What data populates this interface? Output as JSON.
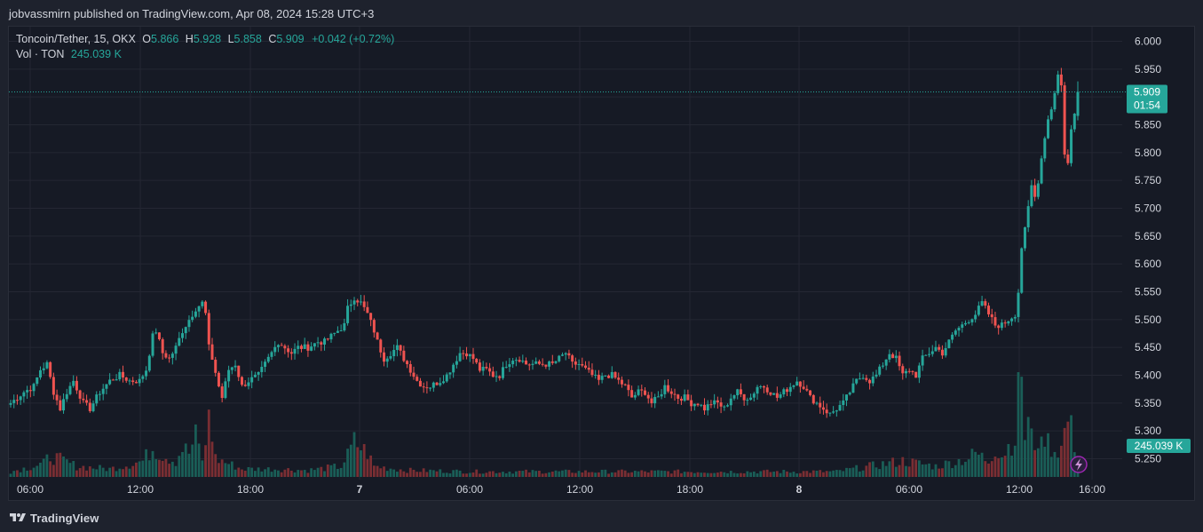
{
  "header": {
    "published_line": "jobvassmirn published on TradingView.com, Apr 08, 2024 15:28 UTC+3"
  },
  "legend": {
    "symbol": "Toncoin/Tether, 15, OKX",
    "o_label": "O",
    "o_value": "5.866",
    "h_label": "H",
    "h_value": "5.928",
    "l_label": "L",
    "l_value": "5.858",
    "c_label": "C",
    "c_value": "5.909",
    "change": "+0.042 (+0.72%)",
    "vol_label": "Vol · TON",
    "vol_value": "245.039 K"
  },
  "footer": {
    "brand": "TradingView"
  },
  "colors": {
    "background": "#161a25",
    "grid": "#242733",
    "up": "#26a69a",
    "down": "#ef5350",
    "vol_up": "#1a5e57",
    "vol_down": "#7a2e33",
    "text": "#d1d4dc",
    "price_tag": "#26a69a"
  },
  "chart_data": {
    "type": "candlestick",
    "title": "Toncoin/Tether, 15, OKX",
    "ylim": [
      5.22,
      6.02
    ],
    "y_ticks": [
      "6.000",
      "5.950",
      "5.900",
      "5.850",
      "5.800",
      "5.750",
      "5.700",
      "5.650",
      "5.600",
      "5.550",
      "5.500",
      "5.450",
      "5.400",
      "5.350",
      "5.300",
      "5.250"
    ],
    "x_ticks": [
      "06:00",
      "12:00",
      "18:00",
      "7",
      "06:00",
      "12:00",
      "18:00",
      "8",
      "06:00",
      "12:00",
      "16:00"
    ],
    "bold_x_ticks": [
      "7",
      "8"
    ],
    "last_price": "5.909",
    "countdown": "01:54",
    "last_volume": "245.039 K",
    "anchors": [
      [
        0,
        5.35
      ],
      [
        4,
        5.37
      ],
      [
        7,
        5.38
      ],
      [
        9,
        5.41
      ],
      [
        11,
        5.42
      ],
      [
        13,
        5.37
      ],
      [
        15,
        5.34
      ],
      [
        17,
        5.37
      ],
      [
        19,
        5.39
      ],
      [
        22,
        5.35
      ],
      [
        24,
        5.34
      ],
      [
        27,
        5.37
      ],
      [
        30,
        5.39
      ],
      [
        33,
        5.4
      ],
      [
        36,
        5.39
      ],
      [
        39,
        5.39
      ],
      [
        41,
        5.41
      ],
      [
        43,
        5.47
      ],
      [
        44,
        5.48
      ],
      [
        46,
        5.44
      ],
      [
        48,
        5.43
      ],
      [
        50,
        5.45
      ],
      [
        52,
        5.48
      ],
      [
        54,
        5.5
      ],
      [
        56,
        5.52
      ],
      [
        58,
        5.53
      ],
      [
        59,
        5.51
      ],
      [
        60,
        5.45
      ],
      [
        61,
        5.43
      ],
      [
        63,
        5.38
      ],
      [
        64,
        5.36
      ],
      [
        66,
        5.41
      ],
      [
        68,
        5.42
      ],
      [
        70,
        5.38
      ],
      [
        72,
        5.39
      ],
      [
        75,
        5.4
      ],
      [
        77,
        5.42
      ],
      [
        79,
        5.44
      ],
      [
        81,
        5.46
      ],
      [
        83,
        5.45
      ],
      [
        85,
        5.44
      ],
      [
        87,
        5.45
      ],
      [
        90,
        5.45
      ],
      [
        93,
        5.46
      ],
      [
        95,
        5.46
      ],
      [
        97,
        5.47
      ],
      [
        99,
        5.48
      ],
      [
        101,
        5.49
      ],
      [
        102,
        5.52
      ],
      [
        104,
        5.54
      ],
      [
        106,
        5.53
      ],
      [
        108,
        5.51
      ],
      [
        110,
        5.48
      ],
      [
        111,
        5.46
      ],
      [
        113,
        5.43
      ],
      [
        115,
        5.44
      ],
      [
        117,
        5.45
      ],
      [
        119,
        5.43
      ],
      [
        121,
        5.41
      ],
      [
        123,
        5.39
      ],
      [
        125,
        5.38
      ],
      [
        127,
        5.38
      ],
      [
        130,
        5.39
      ],
      [
        132,
        5.4
      ],
      [
        134,
        5.42
      ],
      [
        136,
        5.44
      ],
      [
        138,
        5.44
      ],
      [
        140,
        5.43
      ],
      [
        142,
        5.41
      ],
      [
        144,
        5.41
      ],
      [
        146,
        5.4
      ],
      [
        148,
        5.4
      ],
      [
        150,
        5.42
      ],
      [
        152,
        5.43
      ],
      [
        154,
        5.43
      ],
      [
        156,
        5.42
      ],
      [
        158,
        5.42
      ],
      [
        160,
        5.42
      ],
      [
        162,
        5.42
      ],
      [
        164,
        5.42
      ],
      [
        166,
        5.43
      ],
      [
        168,
        5.44
      ],
      [
        170,
        5.42
      ],
      [
        172,
        5.42
      ],
      [
        174,
        5.41
      ],
      [
        176,
        5.4
      ],
      [
        178,
        5.39
      ],
      [
        180,
        5.4
      ],
      [
        182,
        5.4
      ],
      [
        184,
        5.39
      ],
      [
        186,
        5.38
      ],
      [
        188,
        5.36
      ],
      [
        190,
        5.37
      ],
      [
        192,
        5.37
      ],
      [
        194,
        5.35
      ],
      [
        196,
        5.36
      ],
      [
        198,
        5.38
      ],
      [
        200,
        5.37
      ],
      [
        202,
        5.36
      ],
      [
        204,
        5.36
      ],
      [
        206,
        5.35
      ],
      [
        208,
        5.35
      ],
      [
        210,
        5.34
      ],
      [
        212,
        5.35
      ],
      [
        214,
        5.35
      ],
      [
        216,
        5.34
      ],
      [
        218,
        5.36
      ],
      [
        220,
        5.37
      ],
      [
        222,
        5.36
      ],
      [
        224,
        5.36
      ],
      [
        226,
        5.38
      ],
      [
        228,
        5.38
      ],
      [
        230,
        5.37
      ],
      [
        232,
        5.36
      ],
      [
        234,
        5.37
      ],
      [
        236,
        5.38
      ],
      [
        238,
        5.39
      ],
      [
        240,
        5.38
      ],
      [
        242,
        5.36
      ],
      [
        244,
        5.35
      ],
      [
        246,
        5.34
      ],
      [
        248,
        5.33
      ],
      [
        250,
        5.34
      ],
      [
        252,
        5.35
      ],
      [
        254,
        5.37
      ],
      [
        256,
        5.39
      ],
      [
        258,
        5.4
      ],
      [
        260,
        5.39
      ],
      [
        262,
        5.4
      ],
      [
        264,
        5.42
      ],
      [
        266,
        5.44
      ],
      [
        268,
        5.43
      ],
      [
        270,
        5.4
      ],
      [
        272,
        5.41
      ],
      [
        274,
        5.4
      ],
      [
        276,
        5.43
      ],
      [
        278,
        5.44
      ],
      [
        280,
        5.45
      ],
      [
        282,
        5.44
      ],
      [
        284,
        5.46
      ],
      [
        286,
        5.48
      ],
      [
        288,
        5.49
      ],
      [
        290,
        5.5
      ],
      [
        292,
        5.51
      ],
      [
        294,
        5.53
      ],
      [
        296,
        5.51
      ],
      [
        298,
        5.49
      ],
      [
        300,
        5.49
      ],
      [
        302,
        5.5
      ],
      [
        304,
        5.51
      ],
      [
        305,
        5.55
      ],
      [
        306,
        5.63
      ],
      [
        307,
        5.66
      ],
      [
        308,
        5.7
      ],
      [
        309,
        5.74
      ],
      [
        310,
        5.72
      ],
      [
        311,
        5.75
      ],
      [
        312,
        5.79
      ],
      [
        313,
        5.83
      ],
      [
        314,
        5.86
      ],
      [
        315,
        5.88
      ],
      [
        316,
        5.91
      ],
      [
        317,
        5.94
      ],
      [
        318,
        5.92
      ],
      [
        319,
        5.8
      ],
      [
        320,
        5.78
      ],
      [
        321,
        5.84
      ],
      [
        322,
        5.87
      ],
      [
        323,
        5.909
      ]
    ],
    "volume_anchors": [
      [
        0,
        4
      ],
      [
        10,
        10
      ],
      [
        12,
        16
      ],
      [
        20,
        8
      ],
      [
        30,
        6
      ],
      [
        40,
        12
      ],
      [
        43,
        22
      ],
      [
        45,
        18
      ],
      [
        50,
        12
      ],
      [
        52,
        22
      ],
      [
        54,
        18
      ],
      [
        56,
        30
      ],
      [
        58,
        14
      ],
      [
        59,
        20
      ],
      [
        60,
        52
      ],
      [
        62,
        14
      ],
      [
        70,
        6
      ],
      [
        80,
        6
      ],
      [
        90,
        5
      ],
      [
        100,
        8
      ],
      [
        102,
        16
      ],
      [
        104,
        26
      ],
      [
        106,
        22
      ],
      [
        108,
        18
      ],
      [
        110,
        8
      ],
      [
        120,
        5
      ],
      [
        140,
        4
      ],
      [
        160,
        4
      ],
      [
        180,
        4
      ],
      [
        200,
        4
      ],
      [
        220,
        4
      ],
      [
        240,
        4
      ],
      [
        250,
        4
      ],
      [
        260,
        8
      ],
      [
        265,
        10
      ],
      [
        270,
        12
      ],
      [
        280,
        8
      ],
      [
        290,
        14
      ],
      [
        292,
        18
      ],
      [
        296,
        12
      ],
      [
        298,
        22
      ],
      [
        300,
        16
      ],
      [
        304,
        30
      ],
      [
        305,
        58
      ],
      [
        306,
        85
      ],
      [
        307,
        30
      ],
      [
        308,
        40
      ],
      [
        309,
        28
      ],
      [
        310,
        26
      ],
      [
        311,
        30
      ],
      [
        312,
        22
      ],
      [
        313,
        34
      ],
      [
        314,
        26
      ],
      [
        316,
        20
      ],
      [
        318,
        22
      ],
      [
        320,
        44
      ],
      [
        323,
        16
      ]
    ],
    "n_candles": 324
  }
}
